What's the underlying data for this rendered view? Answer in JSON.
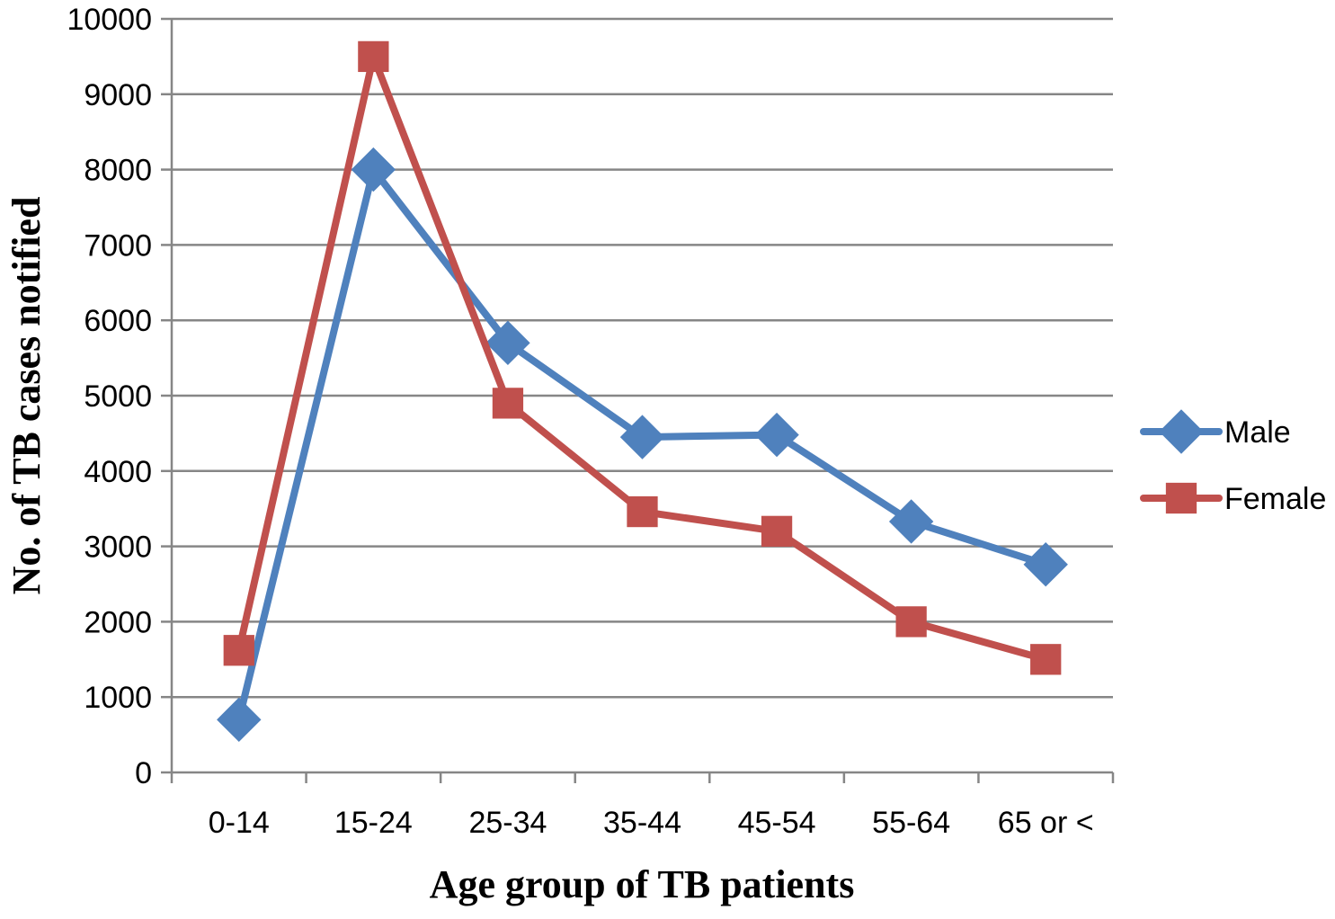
{
  "chart_data": {
    "type": "line",
    "title": "",
    "xlabel": "Age group of TB patients",
    "ylabel": "No. of TB cases notified",
    "categories": [
      "0-14",
      "15-24",
      "25-34",
      "35-44",
      "45-54",
      "55-64",
      "65 or <"
    ],
    "ylim": [
      0,
      10000
    ],
    "yticks": [
      0,
      1000,
      2000,
      3000,
      4000,
      5000,
      6000,
      7000,
      8000,
      9000,
      10000
    ],
    "grid": true,
    "legend_position": "right",
    "series": [
      {
        "name": "Male",
        "values": [
          700,
          8000,
          5700,
          4450,
          4480,
          3330,
          2760
        ],
        "color": "#4F81BD",
        "marker": "diamond"
      },
      {
        "name": "Female",
        "values": [
          1620,
          9500,
          4900,
          3460,
          3200,
          2000,
          1500
        ],
        "color": "#C0504D",
        "marker": "square"
      }
    ]
  }
}
